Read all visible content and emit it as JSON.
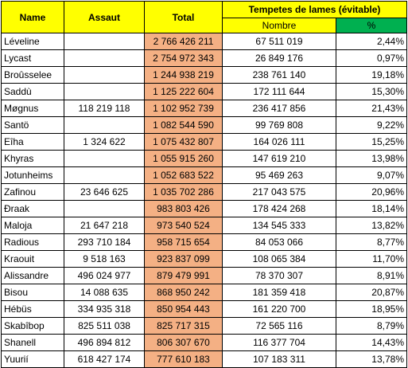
{
  "headers": {
    "name": "Name",
    "assaut": "Assaut",
    "total": "Total",
    "tempetes": "Tempetes de lames (évitable)",
    "nombre": "Nombre",
    "pct": "%"
  },
  "rows": [
    {
      "name": "Léveline",
      "assaut": "",
      "total": "2 766 426 211",
      "nombre": "67 511 019",
      "pct": "2,44%"
    },
    {
      "name": "Lycast",
      "assaut": "",
      "total": "2 754 972 343",
      "nombre": "26 849 176",
      "pct": "0,97%"
    },
    {
      "name": "Broûsselee",
      "assaut": "",
      "total": "1 244 938 219",
      "nombre": "238 761 140",
      "pct": "19,18%"
    },
    {
      "name": "Saddù",
      "assaut": "",
      "total": "1 125 222 604",
      "nombre": "172 111 644",
      "pct": "15,30%"
    },
    {
      "name": "Møgnus",
      "assaut": "118 219 118",
      "total": "1 102 952 739",
      "nombre": "236 417 856",
      "pct": "21,43%"
    },
    {
      "name": "Santö",
      "assaut": "",
      "total": "1 082 544 590",
      "nombre": "99 769 808",
      "pct": "9,22%"
    },
    {
      "name": "Eîha",
      "assaut": "1 324 622",
      "total": "1 075 432 807",
      "nombre": "164 026 111",
      "pct": "15,25%"
    },
    {
      "name": "Khyras",
      "assaut": "",
      "total": "1 055 915 260",
      "nombre": "147 619 210",
      "pct": "13,98%"
    },
    {
      "name": "Jotunheims",
      "assaut": "",
      "total": "1 052 683 522",
      "nombre": "95 469 263",
      "pct": "9,07%"
    },
    {
      "name": "Zafinou",
      "assaut": "23 646 625",
      "total": "1 035 702 286",
      "nombre": "217 043 575",
      "pct": "20,96%"
    },
    {
      "name": "Ðraak",
      "assaut": "",
      "total": "983 803 426",
      "nombre": "178 424 268",
      "pct": "18,14%"
    },
    {
      "name": "Maloja",
      "assaut": "21 647 218",
      "total": "973 540 524",
      "nombre": "134 545 333",
      "pct": "13,82%"
    },
    {
      "name": "Radious",
      "assaut": "293 710 184",
      "total": "958 715 654",
      "nombre": "84 053 066",
      "pct": "8,77%"
    },
    {
      "name": "Kraouit",
      "assaut": "9 518 163",
      "total": "923 837 099",
      "nombre": "108 065 384",
      "pct": "11,70%"
    },
    {
      "name": "Alissandre",
      "assaut": "496 024 977",
      "total": "879 479 991",
      "nombre": "78 370 307",
      "pct": "8,91%"
    },
    {
      "name": "Bisou",
      "assaut": "14 088 635",
      "total": "868 950 242",
      "nombre": "181 359 418",
      "pct": "20,87%"
    },
    {
      "name": "Hébüs",
      "assaut": "334 935 318",
      "total": "850 954 443",
      "nombre": "161 220 700",
      "pct": "18,95%"
    },
    {
      "name": "Skabîbop",
      "assaut": "825 511 038",
      "total": "825 717 315",
      "nombre": "72 565 116",
      "pct": "8,79%"
    },
    {
      "name": "Shanell",
      "assaut": "496 894 812",
      "total": "806 307 670",
      "nombre": "116 377 704",
      "pct": "14,43%"
    },
    {
      "name": "Yuurií",
      "assaut": "618 427 174",
      "total": "777 610 183",
      "nombre": "107 183 311",
      "pct": "13,78%"
    }
  ],
  "colors": {
    "header": "#ffff00",
    "pct_header": "#00b050",
    "total_column": "#f4b084"
  }
}
